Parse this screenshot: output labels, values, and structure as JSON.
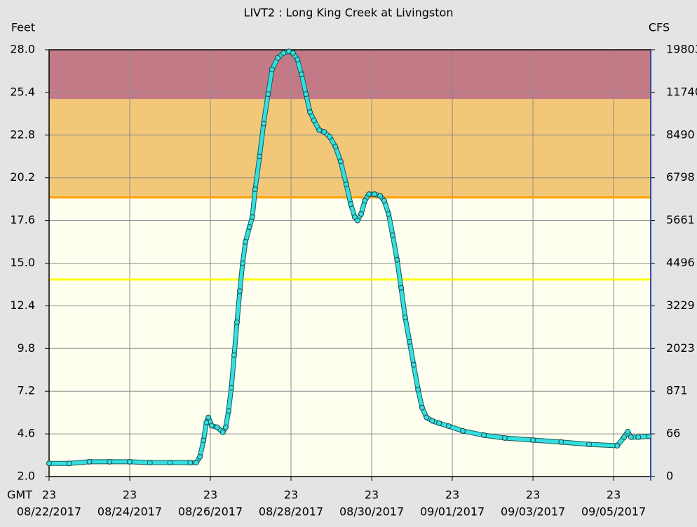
{
  "chart_data": {
    "type": "line",
    "title": "LIVT2  :  Long King Creek at Livingston",
    "ylabel": "Feet",
    "y2label": "CFS",
    "x_timezone": "GMT",
    "xlim": [
      0,
      14.92
    ],
    "xticks": [
      {
        "value": 0,
        "label": "08/22/2017"
      },
      {
        "value": 2,
        "label": "08/24/2017"
      },
      {
        "value": 4,
        "label": "08/26/2017"
      },
      {
        "value": 6,
        "label": "08/28/2017"
      },
      {
        "value": 8,
        "label": "08/30/2017"
      },
      {
        "value": 10,
        "label": "09/01/2017"
      },
      {
        "value": 12,
        "label": "09/03/2017"
      },
      {
        "value": 14,
        "label": "09/05/2017"
      }
    ],
    "xtick_hours": [
      "23",
      "23",
      "23",
      "23",
      "23",
      "23",
      "23",
      "23"
    ],
    "ylim": [
      2.0,
      28.0
    ],
    "yticks": [
      {
        "value": 2.0,
        "label": "2.0"
      },
      {
        "value": 4.6,
        "label": "4.6"
      },
      {
        "value": 7.2,
        "label": "7.2"
      },
      {
        "value": 9.8,
        "label": "9.8"
      },
      {
        "value": 12.4,
        "label": "12.4"
      },
      {
        "value": 15.0,
        "label": "15.0"
      },
      {
        "value": 17.6,
        "label": "17.6"
      },
      {
        "value": 20.2,
        "label": "20.2"
      },
      {
        "value": 22.8,
        "label": "22.8"
      },
      {
        "value": 25.4,
        "label": "25.4"
      },
      {
        "value": 28.0,
        "label": "28.0"
      }
    ],
    "y2ticks": [
      0,
      66,
      871,
      2023,
      3229,
      4496,
      5661,
      6798,
      8490,
      11740,
      19803
    ],
    "grid": true,
    "bands": [
      {
        "from": 19.0,
        "to": 25.0,
        "color": "#f2c878"
      },
      {
        "from": 25.0,
        "to": 28.0,
        "color": "#c47a86"
      }
    ],
    "thresholds": [
      {
        "value": 14.0,
        "color": "#ffff00"
      },
      {
        "value": 19.0,
        "color": "#ffa000"
      }
    ],
    "color": "#33e0e0",
    "x": [
      0,
      0.5,
      1.0,
      1.5,
      2.0,
      2.5,
      3.0,
      3.5,
      3.65,
      3.74,
      3.83,
      3.9,
      3.95,
      4.03,
      4.17,
      4.31,
      4.38,
      4.45,
      4.52,
      4.59,
      4.66,
      4.73,
      4.8,
      4.87,
      4.97,
      5.04,
      5.11,
      5.22,
      5.32,
      5.43,
      5.53,
      5.67,
      5.81,
      5.95,
      6.05,
      6.16,
      6.26,
      6.37,
      6.47,
      6.57,
      6.7,
      6.82,
      6.96,
      7.1,
      7.23,
      7.37,
      7.48,
      7.58,
      7.65,
      7.74,
      7.83,
      7.93,
      8.07,
      8.21,
      8.31,
      8.42,
      8.52,
      8.63,
      8.73,
      8.83,
      8.94,
      9.04,
      9.15,
      9.25,
      9.36,
      9.5,
      9.67,
      9.91,
      10.26,
      10.78,
      11.3,
      12.0,
      12.7,
      13.39,
      14.09,
      14.26,
      14.35,
      14.43,
      14.61,
      14.87
    ],
    "values": [
      2.8,
      2.8,
      2.9,
      2.9,
      2.9,
      2.85,
      2.85,
      2.85,
      2.85,
      3.2,
      4.2,
      5.3,
      5.6,
      5.1,
      5.0,
      4.7,
      5.0,
      6.0,
      7.4,
      9.4,
      11.4,
      13.3,
      15.0,
      16.3,
      17.2,
      17.8,
      19.5,
      21.5,
      23.5,
      25.3,
      26.8,
      27.5,
      27.8,
      27.9,
      27.8,
      27.4,
      26.5,
      25.3,
      24.2,
      23.7,
      23.1,
      23.0,
      22.7,
      22.1,
      21.2,
      19.8,
      18.6,
      17.8,
      17.6,
      18.0,
      18.8,
      19.2,
      19.2,
      19.1,
      18.8,
      18.0,
      16.7,
      15.2,
      13.5,
      11.7,
      10.2,
      8.8,
      7.3,
      6.2,
      5.6,
      5.4,
      5.25,
      5.07,
      4.78,
      4.52,
      4.35,
      4.22,
      4.1,
      3.96,
      3.88,
      4.4,
      4.73,
      4.4,
      4.4,
      4.45
    ]
  }
}
